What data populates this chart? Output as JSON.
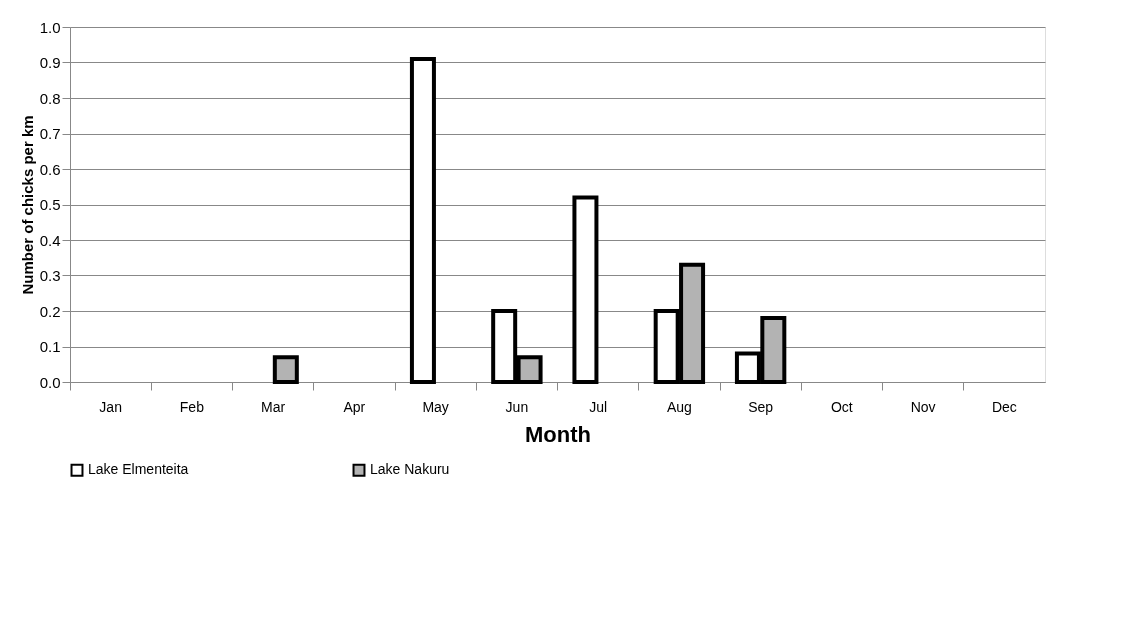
{
  "chart_data": {
    "type": "bar",
    "xlabel": "Month",
    "ylabel": "Number of chicks per km",
    "categories": [
      "Jan",
      "Feb",
      "Mar",
      "Apr",
      "May",
      "Jun",
      "Jul",
      "Aug",
      "Sep",
      "Oct",
      "Nov",
      "Dec"
    ],
    "series": [
      {
        "name": "Lake Elmenteita",
        "color": "#ffffff",
        "values": [
          null,
          null,
          null,
          null,
          0.91,
          0.2,
          0.52,
          0.2,
          0.08,
          null,
          null,
          null
        ]
      },
      {
        "name": "Lake Nakuru",
        "color": "#b3b3b3",
        "values": [
          null,
          null,
          0.07,
          null,
          null,
          0.07,
          null,
          0.33,
          0.18,
          null,
          null,
          null
        ]
      }
    ],
    "ylim": [
      0,
      1.0
    ],
    "yticks": [
      {
        "value": 0,
        "label": "0.0"
      },
      0.1,
      0.2,
      0.3,
      0.4,
      0.5,
      0.6,
      0.7,
      0.8,
      0.9,
      {
        "value": 1,
        "label": "1.0"
      }
    ],
    "grid": "y",
    "legend": "bottom"
  }
}
